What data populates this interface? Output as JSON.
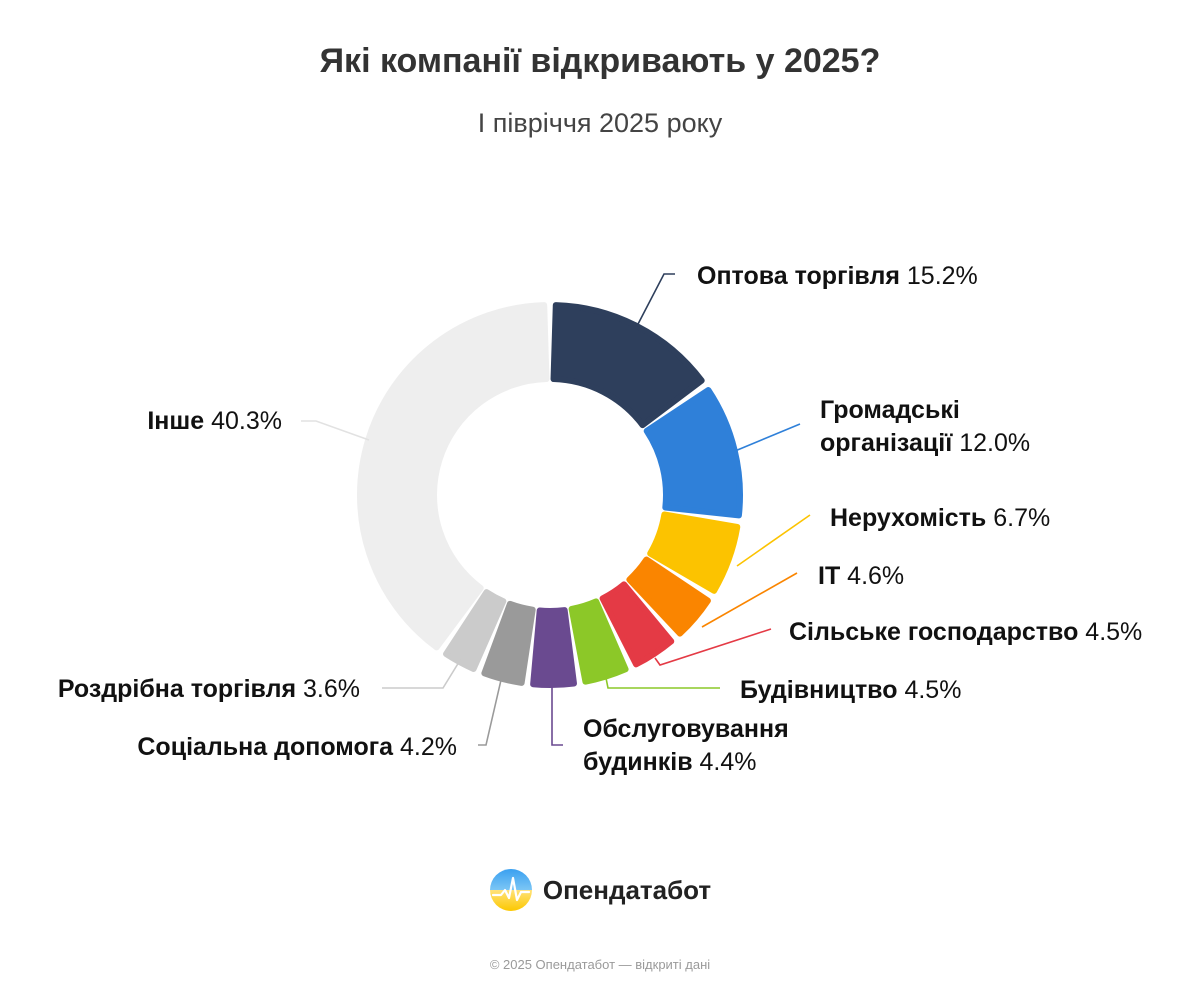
{
  "header": {
    "title": "Які компанії відкривають у 2025?",
    "subtitle": "І півріччя 2025 року"
  },
  "chart_data": {
    "type": "pie",
    "variant": "donut",
    "title": "Які компанії відкривають у 2025?",
    "subtitle": "І півріччя 2025 року",
    "unit": "%",
    "slices": [
      {
        "name": "Оптова торгівля",
        "label_lines": [
          "Оптова торгівля"
        ],
        "value": 15.2,
        "value_label": "15.2%",
        "color": "#2e3f5c"
      },
      {
        "name": "Громадські організації",
        "label_lines": [
          "Громадські",
          "організації"
        ],
        "value": 12.0,
        "value_label": "12.0%",
        "color": "#2f80d9"
      },
      {
        "name": "Нерухомість",
        "label_lines": [
          "Нерухомість"
        ],
        "value": 6.7,
        "value_label": "6.7%",
        "color": "#fcc300"
      },
      {
        "name": "ІТ",
        "label_lines": [
          "ІТ"
        ],
        "value": 4.6,
        "value_label": "4.6%",
        "color": "#fa8500"
      },
      {
        "name": "Сільське господарство",
        "label_lines": [
          "Сільське господарство"
        ],
        "value": 4.5,
        "value_label": "4.5%",
        "color": "#e43a45"
      },
      {
        "name": "Будівництво",
        "label_lines": [
          "Будівництво"
        ],
        "value": 4.5,
        "value_label": "4.5%",
        "color": "#8cc828"
      },
      {
        "name": "Обслуговування будинків",
        "label_lines": [
          "Обслуговування",
          "будинків"
        ],
        "value": 4.4,
        "value_label": "4.4%",
        "color": "#6a4a90"
      },
      {
        "name": "Соціальна допомога",
        "label_lines": [
          "Соціальна допомога"
        ],
        "value": 4.2,
        "value_label": "4.2%",
        "color": "#9a9a9a"
      },
      {
        "name": "Роздрібна торгівля",
        "label_lines": [
          "Роздрібна торгівля"
        ],
        "value": 3.6,
        "value_label": "3.6%",
        "color": "#cbcbcb"
      },
      {
        "name": "Інше",
        "label_lines": [
          "Інше"
        ],
        "value": 40.3,
        "value_label": "40.3%",
        "color": "#eeeeee"
      }
    ]
  },
  "brand": {
    "name": "Опендатабот",
    "logo_icon": "opendatabot-logo-icon",
    "logo_colors": [
      "#3aa0f0",
      "#fcd200"
    ]
  },
  "footer": {
    "text": "© 2025 Опендатабот — відкриті дані"
  }
}
